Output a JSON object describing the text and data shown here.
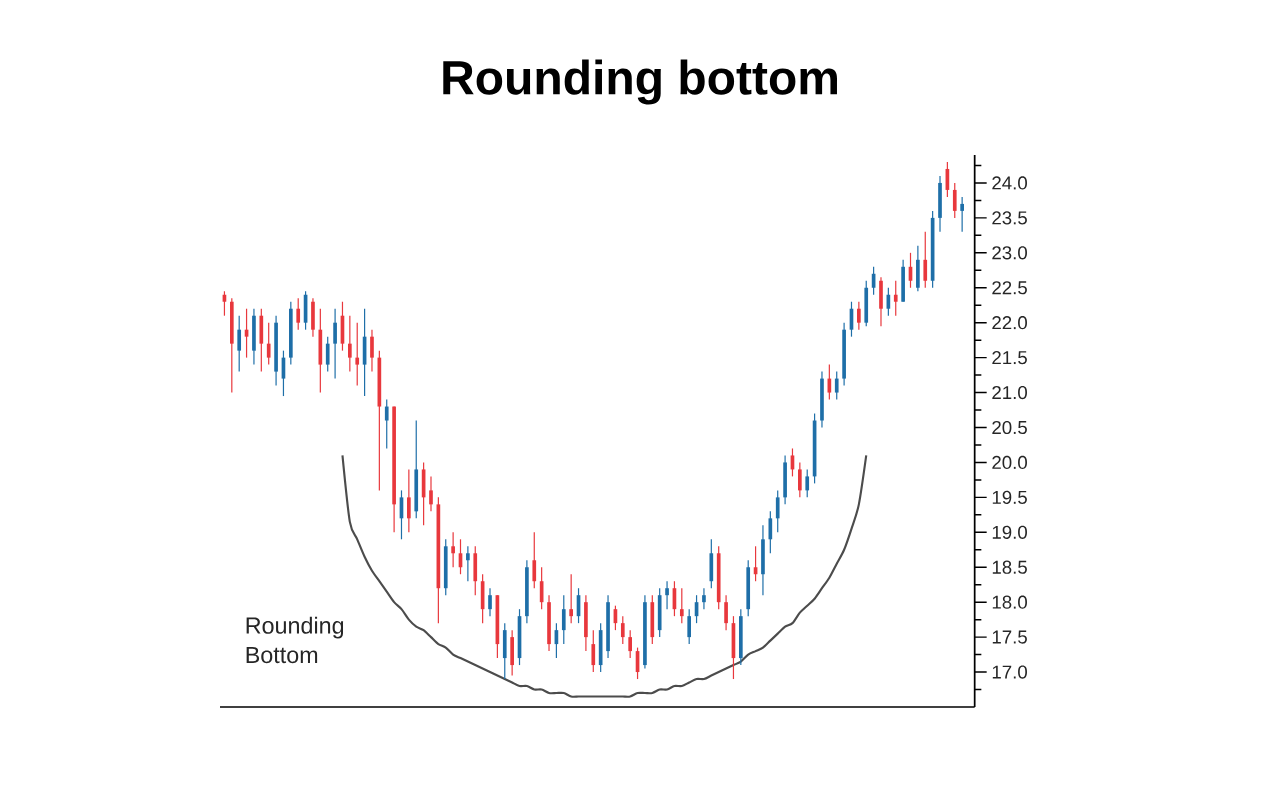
{
  "chart_data": {
    "type": "candlestick",
    "title": "Rounding bottom",
    "annotations": [
      "Rounding Bottom"
    ],
    "categories": [
      null,
      null,
      null,
      null,
      null,
      null,
      null,
      null,
      null,
      null,
      null,
      null,
      null,
      null,
      null,
      null,
      null,
      null,
      null,
      null,
      null,
      null,
      null,
      null,
      null,
      null,
      null,
      null,
      null,
      null,
      null,
      null,
      null,
      null,
      null,
      null,
      null,
      null,
      null,
      null,
      null,
      null,
      null,
      null,
      null,
      null,
      null,
      null,
      null,
      null,
      null,
      null,
      null,
      null,
      null,
      null,
      null,
      null,
      null,
      null,
      null,
      null,
      null,
      null,
      null,
      null,
      null,
      null,
      null,
      null,
      null,
      null,
      null,
      null,
      null,
      null,
      null,
      null,
      null,
      null,
      null,
      null,
      null,
      null,
      null,
      null,
      null,
      null,
      null,
      null,
      null,
      null,
      null,
      null,
      null,
      null,
      null,
      null,
      null,
      null,
      null
    ],
    "ohlc": [
      [
        22.4,
        22.45,
        22.1,
        22.3
      ],
      [
        22.3,
        22.35,
        21.0,
        21.7
      ],
      [
        21.6,
        22.1,
        21.3,
        21.9
      ],
      [
        21.9,
        22.2,
        21.5,
        21.8
      ],
      [
        21.6,
        22.2,
        21.4,
        22.1
      ],
      [
        22.1,
        22.2,
        21.3,
        21.7
      ],
      [
        21.7,
        22.0,
        21.4,
        21.5
      ],
      [
        21.3,
        22.1,
        21.1,
        22.0
      ],
      [
        21.2,
        21.6,
        20.95,
        21.5
      ],
      [
        21.5,
        22.3,
        21.4,
        22.2
      ],
      [
        22.2,
        22.35,
        21.9,
        22.0
      ],
      [
        22.0,
        22.45,
        21.9,
        22.4
      ],
      [
        22.3,
        22.35,
        21.8,
        21.9
      ],
      [
        21.9,
        22.2,
        21.0,
        21.4
      ],
      [
        21.4,
        21.8,
        21.3,
        21.7
      ],
      [
        21.7,
        22.2,
        21.2,
        22.0
      ],
      [
        22.1,
        22.3,
        21.6,
        21.7
      ],
      [
        21.7,
        22.1,
        21.3,
        21.5
      ],
      [
        21.5,
        22.0,
        21.1,
        21.4
      ],
      [
        21.4,
        22.2,
        20.95,
        21.8
      ],
      [
        21.8,
        21.9,
        21.3,
        21.5
      ],
      [
        21.5,
        21.6,
        19.6,
        20.8
      ],
      [
        20.6,
        20.9,
        20.2,
        20.8
      ],
      [
        20.8,
        20.8,
        19.0,
        19.4
      ],
      [
        19.2,
        19.6,
        18.9,
        19.5
      ],
      [
        19.5,
        19.9,
        19.0,
        19.2
      ],
      [
        19.3,
        20.6,
        19.2,
        19.9
      ],
      [
        19.9,
        20.0,
        19.1,
        19.5
      ],
      [
        19.6,
        19.8,
        19.3,
        19.4
      ],
      [
        19.4,
        19.5,
        17.7,
        18.2
      ],
      [
        18.2,
        18.9,
        18.1,
        18.8
      ],
      [
        18.8,
        19.0,
        18.5,
        18.7
      ],
      [
        18.7,
        18.9,
        18.4,
        18.5
      ],
      [
        18.6,
        18.8,
        18.3,
        18.7
      ],
      [
        18.7,
        18.8,
        18.1,
        18.3
      ],
      [
        18.3,
        18.4,
        17.7,
        17.9
      ],
      [
        17.9,
        18.2,
        17.8,
        18.1
      ],
      [
        18.1,
        18.1,
        17.2,
        17.4
      ],
      [
        17.2,
        17.7,
        16.9,
        17.6
      ],
      [
        17.5,
        17.6,
        16.95,
        17.1
      ],
      [
        17.2,
        17.9,
        17.1,
        17.8
      ],
      [
        17.8,
        18.6,
        17.7,
        18.5
      ],
      [
        18.6,
        19.0,
        18.2,
        18.3
      ],
      [
        18.3,
        18.5,
        17.9,
        18.0
      ],
      [
        18.0,
        18.1,
        17.3,
        17.4
      ],
      [
        17.4,
        17.7,
        17.2,
        17.6
      ],
      [
        17.6,
        18.1,
        17.4,
        17.9
      ],
      [
        17.9,
        18.4,
        17.7,
        17.8
      ],
      [
        17.8,
        18.2,
        17.7,
        18.1
      ],
      [
        18.0,
        18.1,
        17.3,
        17.5
      ],
      [
        17.4,
        17.6,
        17.0,
        17.1
      ],
      [
        17.1,
        17.7,
        17.0,
        17.6
      ],
      [
        17.3,
        18.1,
        17.2,
        18.0
      ],
      [
        17.9,
        17.95,
        17.6,
        17.7
      ],
      [
        17.7,
        17.8,
        17.4,
        17.5
      ],
      [
        17.5,
        17.6,
        17.2,
        17.3
      ],
      [
        17.3,
        17.35,
        16.9,
        17.0
      ],
      [
        17.1,
        18.1,
        17.05,
        18.0
      ],
      [
        18.0,
        18.1,
        17.4,
        17.5
      ],
      [
        17.6,
        18.2,
        17.5,
        18.1
      ],
      [
        18.1,
        18.3,
        17.9,
        18.2
      ],
      [
        18.2,
        18.3,
        17.8,
        17.9
      ],
      [
        17.9,
        18.2,
        17.7,
        17.8
      ],
      [
        17.5,
        17.9,
        17.4,
        17.8
      ],
      [
        17.8,
        18.1,
        17.7,
        18.0
      ],
      [
        18.0,
        18.2,
        17.9,
        18.1
      ],
      [
        18.3,
        18.9,
        18.2,
        18.7
      ],
      [
        18.7,
        18.8,
        17.9,
        18.0
      ],
      [
        18.0,
        18.1,
        17.6,
        17.7
      ],
      [
        17.7,
        17.8,
        16.9,
        17.2
      ],
      [
        17.2,
        17.9,
        17.1,
        17.8
      ],
      [
        17.9,
        18.6,
        17.8,
        18.5
      ],
      [
        18.5,
        18.8,
        18.3,
        18.4
      ],
      [
        18.4,
        19.1,
        18.1,
        18.9
      ],
      [
        18.9,
        19.3,
        18.7,
        19.2
      ],
      [
        19.2,
        19.6,
        19.0,
        19.5
      ],
      [
        19.5,
        20.1,
        19.4,
        20.0
      ],
      [
        20.1,
        20.2,
        19.8,
        19.9
      ],
      [
        19.9,
        20.0,
        19.5,
        19.6
      ],
      [
        19.6,
        19.9,
        19.5,
        19.8
      ],
      [
        19.8,
        20.7,
        19.7,
        20.6
      ],
      [
        20.6,
        21.3,
        20.5,
        21.2
      ],
      [
        21.2,
        21.4,
        20.9,
        21.0
      ],
      [
        21.0,
        21.3,
        20.9,
        21.2
      ],
      [
        21.2,
        22.0,
        21.1,
        21.9
      ],
      [
        21.9,
        22.3,
        21.8,
        22.2
      ],
      [
        22.2,
        22.3,
        21.9,
        22.0
      ],
      [
        22.0,
        22.6,
        21.95,
        22.5
      ],
      [
        22.5,
        22.8,
        22.4,
        22.7
      ],
      [
        22.6,
        22.65,
        21.95,
        22.2
      ],
      [
        22.2,
        22.5,
        22.1,
        22.4
      ],
      [
        22.4,
        22.6,
        22.1,
        22.3
      ],
      [
        22.3,
        22.9,
        22.3,
        22.8
      ],
      [
        22.8,
        23.0,
        22.5,
        22.6
      ],
      [
        22.5,
        23.1,
        22.45,
        22.9
      ],
      [
        22.9,
        23.3,
        22.5,
        22.6
      ],
      [
        22.6,
        23.6,
        22.5,
        23.5
      ],
      [
        23.5,
        24.1,
        23.3,
        24.0
      ],
      [
        24.2,
        24.3,
        23.8,
        23.9
      ],
      [
        23.9,
        24.0,
        23.5,
        23.6
      ],
      [
        23.6,
        23.8,
        23.3,
        23.7
      ]
    ],
    "colors": [
      "#e8383d",
      "#e8383d",
      "#1f6fa8",
      "#e8383d",
      "#1f6fa8",
      "#e8383d",
      "#e8383d",
      "#1f6fa8",
      "#1f6fa8",
      "#1f6fa8",
      "#e8383d",
      "#1f6fa8",
      "#e8383d",
      "#e8383d",
      "#1f6fa8",
      "#1f6fa8",
      "#e8383d",
      "#e8383d",
      "#e8383d",
      "#1f6fa8",
      "#e8383d",
      "#e8383d",
      "#1f6fa8",
      "#e8383d",
      "#1f6fa8",
      "#e8383d",
      "#1f6fa8",
      "#e8383d",
      "#e8383d",
      "#e8383d",
      "#1f6fa8",
      "#e8383d",
      "#e8383d",
      "#1f6fa8",
      "#e8383d",
      "#e8383d",
      "#1f6fa8",
      "#e8383d",
      "#1f6fa8",
      "#e8383d",
      "#1f6fa8",
      "#1f6fa8",
      "#e8383d",
      "#e8383d",
      "#e8383d",
      "#1f6fa8",
      "#1f6fa8",
      "#e8383d",
      "#1f6fa8",
      "#e8383d",
      "#e8383d",
      "#1f6fa8",
      "#1f6fa8",
      "#e8383d",
      "#e8383d",
      "#e8383d",
      "#e8383d",
      "#1f6fa8",
      "#e8383d",
      "#1f6fa8",
      "#1f6fa8",
      "#e8383d",
      "#e8383d",
      "#1f6fa8",
      "#1f6fa8",
      "#1f6fa8",
      "#1f6fa8",
      "#e8383d",
      "#e8383d",
      "#e8383d",
      "#1f6fa8",
      "#1f6fa8",
      "#e8383d",
      "#1f6fa8",
      "#1f6fa8",
      "#1f6fa8",
      "#1f6fa8",
      "#e8383d",
      "#e8383d",
      "#1f6fa8",
      "#1f6fa8",
      "#1f6fa8",
      "#e8383d",
      "#1f6fa8",
      "#1f6fa8",
      "#1f6fa8",
      "#e8383d",
      "#1f6fa8",
      "#1f6fa8",
      "#e8383d",
      "#1f6fa8",
      "#e8383d",
      "#1f6fa8",
      "#e8383d",
      "#1f6fa8",
      "#e8383d",
      "#1f6fa8",
      "#1f6fa8",
      "#e8383d",
      "#e8383d",
      "#1f6fa8"
    ],
    "ylim": [
      16.5,
      24.4
    ],
    "yticks": [
      {
        "value": 16.75,
        "label": null
      },
      {
        "value": 17.0,
        "label": "17.0"
      },
      {
        "value": 17.25,
        "label": null
      },
      {
        "value": 17.5,
        "label": "17.5"
      },
      {
        "value": 17.75,
        "label": null
      },
      {
        "value": 18.0,
        "label": "18.0"
      },
      {
        "value": 18.25,
        "label": null
      },
      {
        "value": 18.5,
        "label": "18.5"
      },
      {
        "value": 18.75,
        "label": null
      },
      {
        "value": 19.0,
        "label": "19.0"
      },
      {
        "value": 19.25,
        "label": null
      },
      {
        "value": 19.5,
        "label": "19.5"
      },
      {
        "value": 19.75,
        "label": null
      },
      {
        "value": 20.0,
        "label": "20.0"
      },
      {
        "value": 20.25,
        "label": null
      },
      {
        "value": 20.5,
        "label": "20.5"
      },
      {
        "value": 20.75,
        "label": null
      },
      {
        "value": 21.0,
        "label": "21.0"
      },
      {
        "value": 21.25,
        "label": null
      },
      {
        "value": 21.5,
        "label": "21.5"
      },
      {
        "value": 21.75,
        "label": null
      },
      {
        "value": 22.0,
        "label": "22.0"
      },
      {
        "value": 22.25,
        "label": null
      },
      {
        "value": 22.5,
        "label": "22.5"
      },
      {
        "value": 22.75,
        "label": null
      },
      {
        "value": 23.0,
        "label": "23.0"
      },
      {
        "value": 23.25,
        "label": null
      },
      {
        "value": 23.5,
        "label": "23.5"
      },
      {
        "value": 23.75,
        "label": null
      },
      {
        "value": 24.0,
        "label": "24.0"
      },
      {
        "value": 24.25,
        "label": null
      }
    ],
    "series": [
      {
        "type": "line",
        "color": "#4c4c4c",
        "values": [
          null,
          null,
          null,
          null,
          null,
          null,
          null,
          null,
          null,
          null,
          null,
          null,
          null,
          null,
          null,
          null,
          20.1,
          19.15,
          18.9,
          18.65,
          18.45,
          18.3,
          18.15,
          18.0,
          17.9,
          17.75,
          17.65,
          17.6,
          17.5,
          17.4,
          17.35,
          17.25,
          17.2,
          17.15,
          17.1,
          17.05,
          17.0,
          16.95,
          16.9,
          16.85,
          16.8,
          16.8,
          16.75,
          16.75,
          16.7,
          16.7,
          16.7,
          16.65,
          16.65,
          16.65,
          16.65,
          16.65,
          16.65,
          16.65,
          16.65,
          16.65,
          16.7,
          16.7,
          16.7,
          16.75,
          16.75,
          16.8,
          16.8,
          16.85,
          16.9,
          16.9,
          16.95,
          17.0,
          17.05,
          17.1,
          17.15,
          17.25,
          17.3,
          17.35,
          17.45,
          17.55,
          17.65,
          17.7,
          17.85,
          17.95,
          18.05,
          18.2,
          18.35,
          18.55,
          18.75,
          19.05,
          19.4,
          20.1,
          null,
          null,
          null,
          null,
          null,
          null,
          null,
          null,
          null,
          null,
          null,
          null,
          null
        ]
      }
    ],
    "tick_labels": "y"
  }
}
